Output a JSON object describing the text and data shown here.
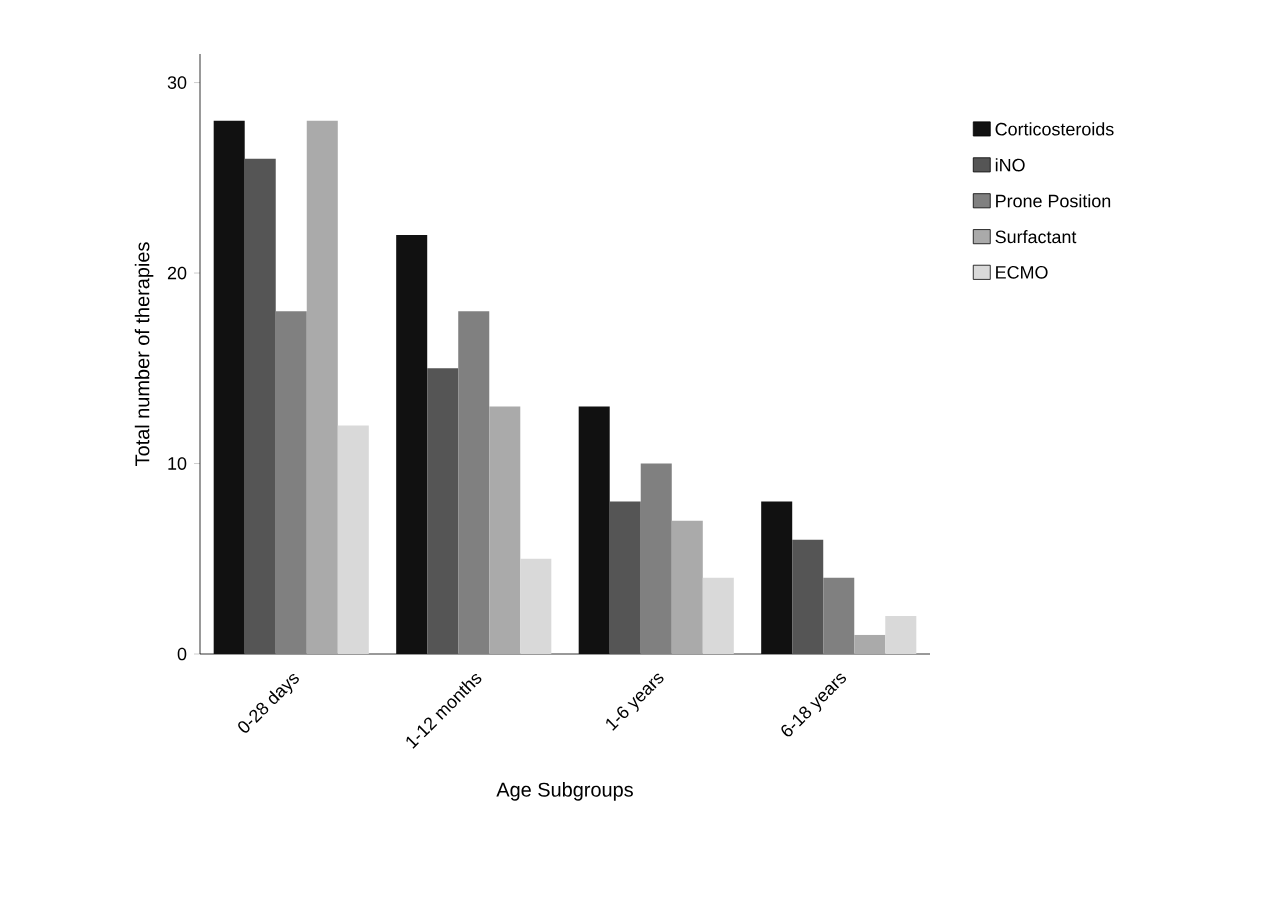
{
  "chart_data": {
    "type": "bar",
    "xlabel": "Age Subgroups",
    "ylabel": "Total number of therapies",
    "categories": [
      "0-28 days",
      "1-12 months",
      "1-6 years",
      "6-18 years"
    ],
    "series": [
      {
        "name": "Corticosteroids",
        "color": "#111111",
        "values": [
          28,
          22,
          13,
          8
        ]
      },
      {
        "name": "iNO",
        "color": "#555555",
        "values": [
          26,
          15,
          8,
          6
        ]
      },
      {
        "name": "Prone Position",
        "color": "#808080",
        "values": [
          18,
          18,
          10,
          4
        ]
      },
      {
        "name": "Surfactant",
        "color": "#aaaaaa",
        "values": [
          28,
          13,
          7,
          1
        ]
      },
      {
        "name": "ECMO",
        "color": "#d9d9d9",
        "values": [
          12,
          5,
          4,
          2
        ]
      }
    ],
    "ylim": [
      0,
      31.5
    ],
    "yticks": [
      0,
      10,
      20,
      30
    ],
    "legend": "right",
    "grid": false
  }
}
